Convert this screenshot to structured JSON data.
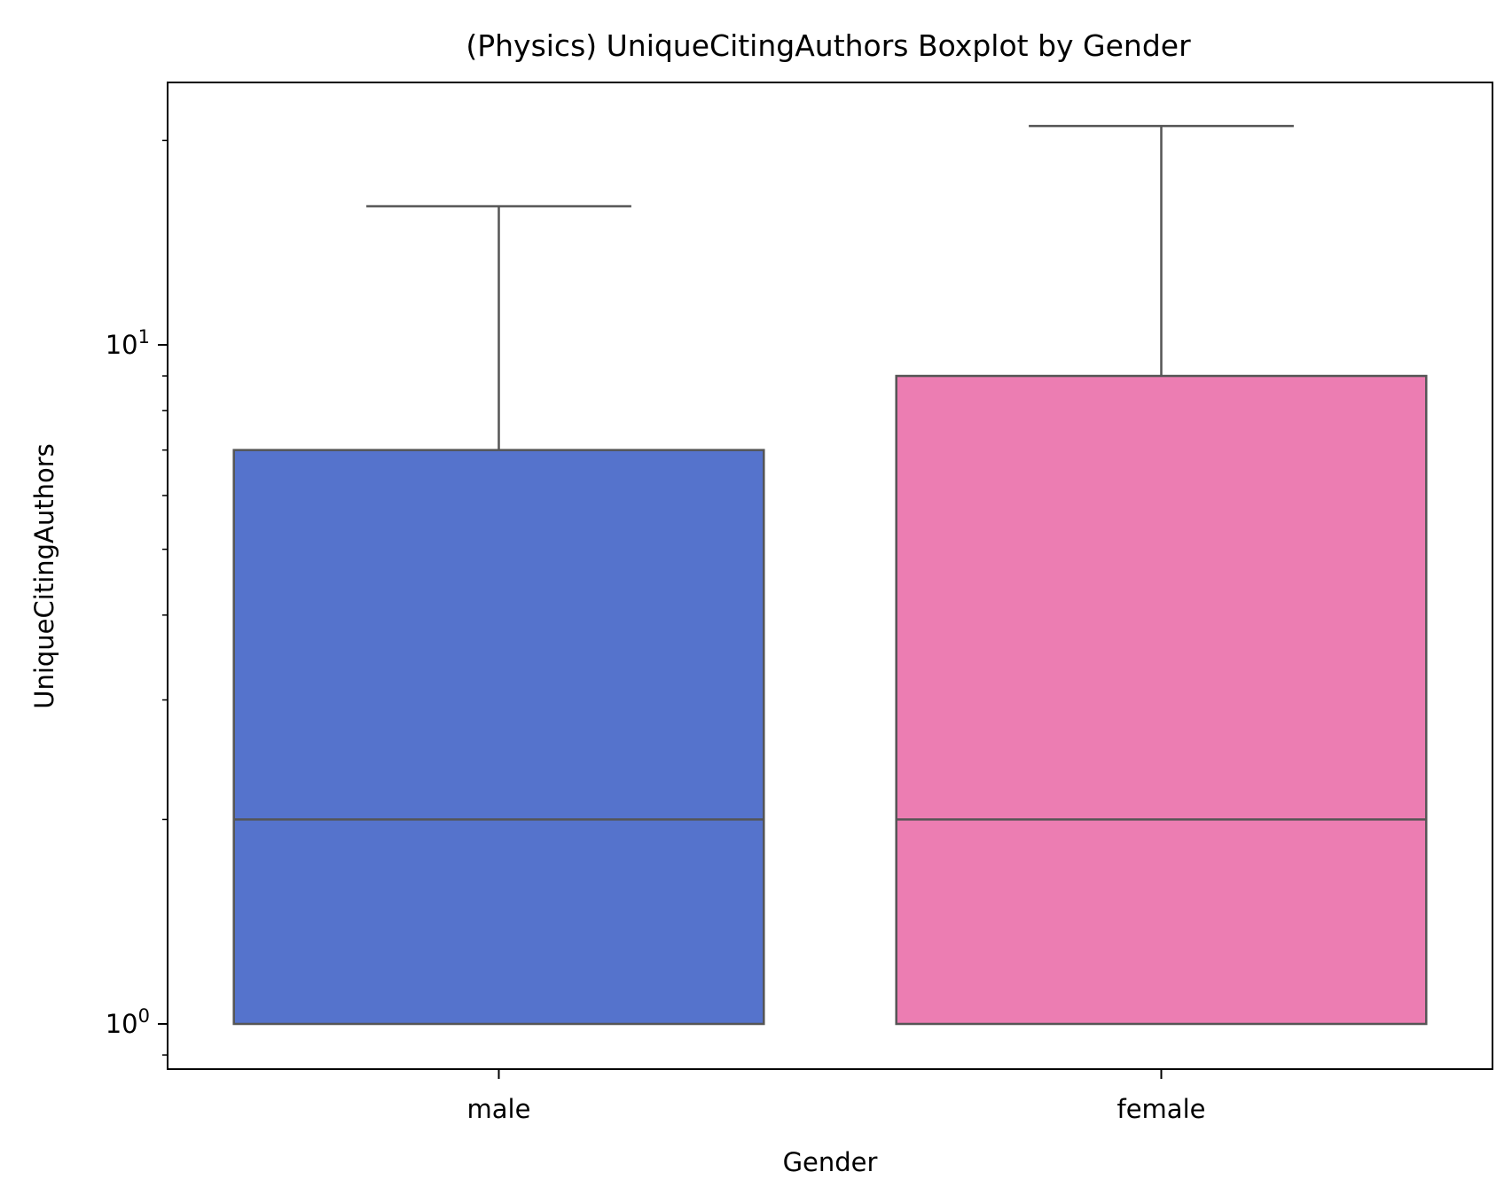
{
  "chart_data": {
    "type": "box",
    "title": "(Physics) UniqueCitingAuthors Boxplot by Gender",
    "xlabel": "Gender",
    "ylabel": "UniqueCitingAuthors",
    "yscale": "log",
    "ylim": [
      0.9,
      22.4
    ],
    "yticks": [
      {
        "value": 1,
        "base": "10",
        "exp": "0"
      },
      {
        "value": 10,
        "base": "10",
        "exp": "1"
      }
    ],
    "categories": [
      "male",
      "female"
    ],
    "boxes": [
      {
        "category": "male",
        "color": "#5573cc",
        "whisker_low": 1,
        "q1": 1,
        "median": 2,
        "q3": 7,
        "whisker_high": 16
      },
      {
        "category": "female",
        "color": "#ec7db2",
        "whisker_low": 1,
        "q1": 1,
        "median": 2,
        "q3": 9,
        "whisker_high": 21
      }
    ],
    "line_color": "#555555",
    "grid": false,
    "legend": "none"
  }
}
